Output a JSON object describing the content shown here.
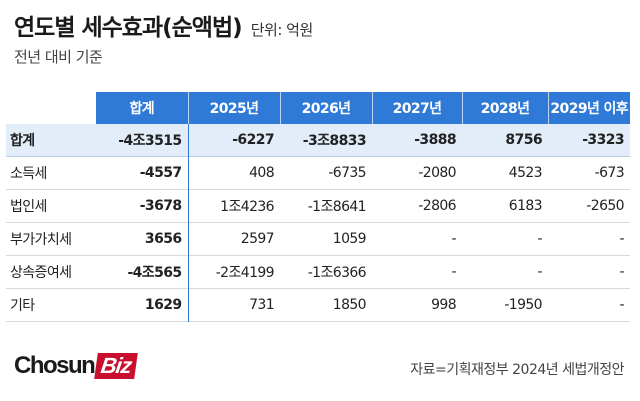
{
  "title": {
    "main": "연도별 세수효과(순액법)",
    "unit": "단위: 억원"
  },
  "subtitle": "전년 대비 기준",
  "table": {
    "columns": [
      "합계",
      "2025년",
      "2026년",
      "2027년",
      "2028년",
      "2029년 이후"
    ],
    "rows": [
      {
        "label": "합계",
        "values": [
          "-4조3515",
          "-6227",
          "-3조8833",
          "-3888",
          "8756",
          "-3323"
        ]
      },
      {
        "label": "소득세",
        "values": [
          "-4557",
          "408",
          "-6735",
          "-2080",
          "4523",
          "-673"
        ]
      },
      {
        "label": "법인세",
        "values": [
          "-3678",
          "1조4236",
          "-1조8641",
          "-2806",
          "6183",
          "-2650"
        ]
      },
      {
        "label": "부가가치세",
        "values": [
          "3656",
          "2597",
          "1059",
          "-",
          "-",
          "-"
        ]
      },
      {
        "label": "상속증여세",
        "values": [
          "-4조565",
          "-2조4199",
          "-1조6366",
          "-",
          "-",
          "-"
        ]
      },
      {
        "label": "기타",
        "values": [
          "1629",
          "731",
          "1850",
          "998",
          "-1950",
          "-"
        ]
      }
    ]
  },
  "logo": {
    "text": "Chosun",
    "badge": "Biz"
  },
  "source": "자료=기획재정부 2024년 세법개정안",
  "colors": {
    "header": "#2f7ad6",
    "total_row": "#e3edf9",
    "logo_badge": "#c8102e"
  }
}
